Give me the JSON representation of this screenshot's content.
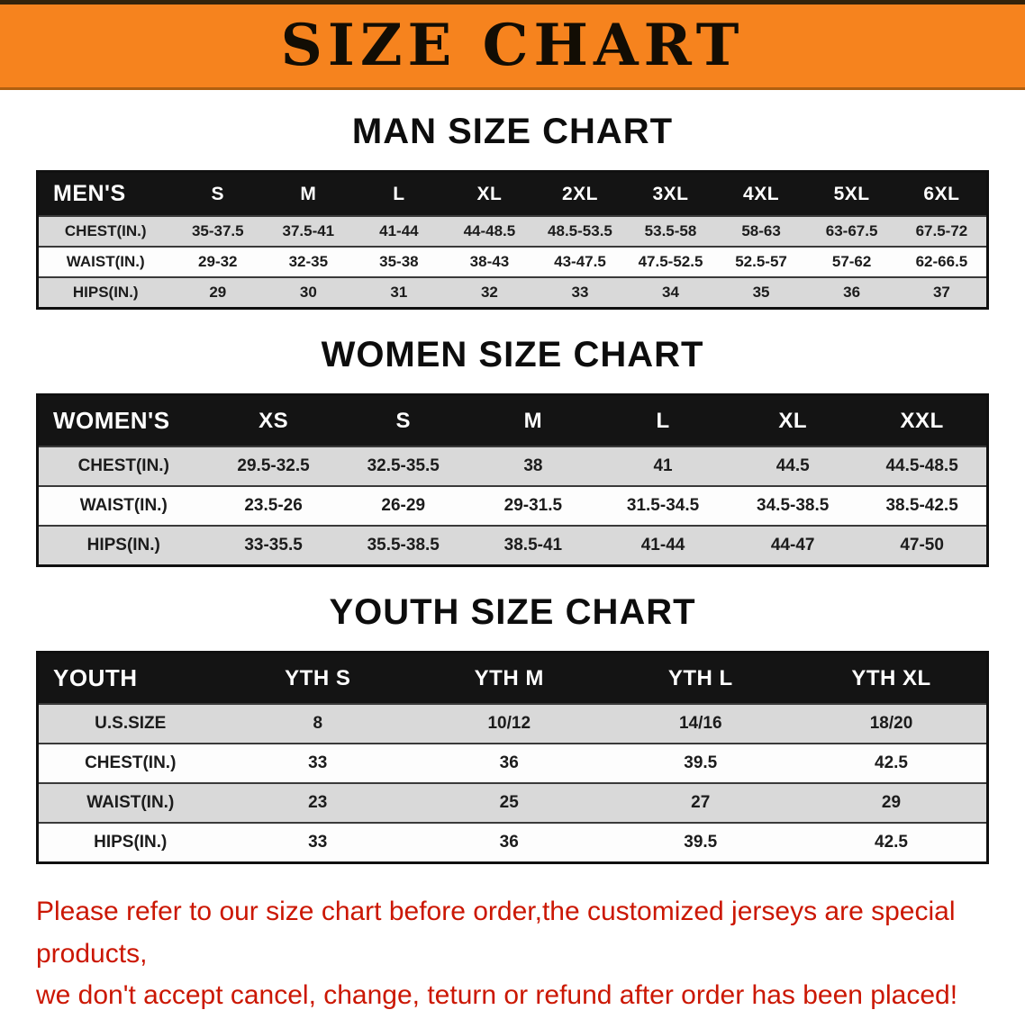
{
  "banner": {
    "title": "SIZE CHART",
    "background_color": "#f6831e",
    "title_color": "#120d04"
  },
  "colors": {
    "table_header_bg": "#141414",
    "table_header_text": "#ffffff",
    "row_stripe_gray": "#d9d9d9",
    "note_red": "#cb1703"
  },
  "sections": [
    {
      "heading": "MAN SIZE CHART",
      "table": {
        "header": [
          "MEN'S",
          "S",
          "M",
          "L",
          "XL",
          "2XL",
          "3XL",
          "4XL",
          "5XL",
          "6XL"
        ],
        "rows": [
          [
            "CHEST(IN.)",
            "35-37.5",
            "37.5-41",
            "41-44",
            "44-48.5",
            "48.5-53.5",
            "53.5-58",
            "58-63",
            "63-67.5",
            "67.5-72"
          ],
          [
            "WAIST(IN.)",
            "29-32",
            "32-35",
            "35-38",
            "38-43",
            "43-47.5",
            "47.5-52.5",
            "52.5-57",
            "57-62",
            "62-66.5"
          ],
          [
            "HIPS(IN.)",
            "29",
            "30",
            "31",
            "32",
            "33",
            "34",
            "35",
            "36",
            "37"
          ]
        ]
      }
    },
    {
      "heading": "WOMEN SIZE CHART",
      "table": {
        "header": [
          "WOMEN'S",
          "XS",
          "S",
          "M",
          "L",
          "XL",
          "XXL"
        ],
        "rows": [
          [
            "CHEST(IN.)",
            "29.5-32.5",
            "32.5-35.5",
            "38",
            "41",
            "44.5",
            "44.5-48.5"
          ],
          [
            "WAIST(IN.)",
            "23.5-26",
            "26-29",
            "29-31.5",
            "31.5-34.5",
            "34.5-38.5",
            "38.5-42.5"
          ],
          [
            "HIPS(IN.)",
            "33-35.5",
            "35.5-38.5",
            "38.5-41",
            "41-44",
            "44-47",
            "47-50"
          ]
        ]
      }
    },
    {
      "heading": "YOUTH SIZE CHART",
      "table": {
        "header": [
          "YOUTH",
          "YTH S",
          "YTH M",
          "YTH L",
          "YTH XL"
        ],
        "rows": [
          [
            "U.S.SIZE",
            "8",
            "10/12",
            "14/16",
            "18/20"
          ],
          [
            "CHEST(IN.)",
            "33",
            "36",
            "39.5",
            "42.5"
          ],
          [
            "WAIST(IN.)",
            "23",
            "25",
            "27",
            "29"
          ],
          [
            "HIPS(IN.)",
            "33",
            "36",
            "39.5",
            "42.5"
          ]
        ]
      }
    }
  ],
  "footer": {
    "line1": "Please refer to our size chart before order,the customized jerseys are special products,",
    "line2": "we don't accept cancel, change, teturn or refund after order has been placed!"
  }
}
